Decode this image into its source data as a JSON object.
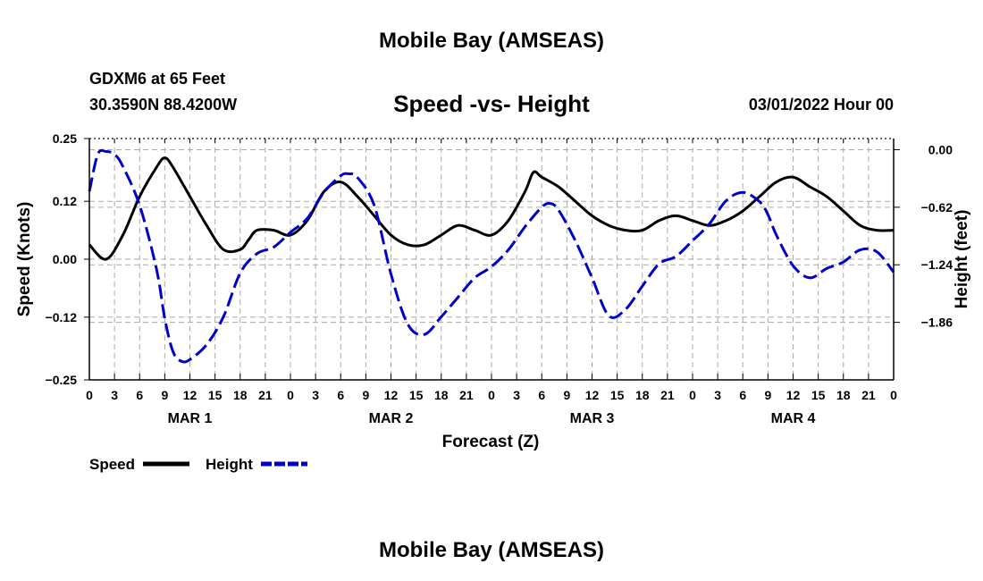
{
  "page": {
    "title_top": "Mobile Bay (AMSEAS)",
    "title_bottom": "Mobile Bay (AMSEAS)",
    "station_line": "GDXM6 at 65 Feet",
    "coords_line": "30.3590N  88.4200W",
    "chart_title": "Speed -vs- Height",
    "forecast_time": "03/01/2022 Hour 00"
  },
  "colors": {
    "speed": "#000000",
    "height": "#0000cc",
    "grid": "#aaaaaa"
  },
  "chart_data": {
    "type": "line",
    "title": "Speed -vs- Height",
    "xlabel": "Forecast (Z)",
    "ylabel_left": "Speed (Knots)",
    "ylabel_right": "Height (feet)",
    "xlim": [
      0,
      96
    ],
    "ylim_left": [
      -0.25,
      0.25
    ],
    "ylim_right": [
      -2.48,
      0.12
    ],
    "left_ticks": [
      0.25,
      0.12,
      0.0,
      -0.12,
      -0.25
    ],
    "left_tick_labels": [
      "0.25",
      "0.12",
      "0.00",
      "−0.12",
      "−0.25"
    ],
    "right_ticks": [
      0.0,
      -0.62,
      -1.24,
      -1.86
    ],
    "right_tick_labels": [
      "0.00",
      "−0.62",
      "−1.24",
      "−1.86"
    ],
    "x_ticks": [
      0,
      3,
      6,
      9,
      12,
      15,
      18,
      21,
      24,
      27,
      30,
      33,
      36,
      39,
      42,
      45,
      48,
      51,
      54,
      57,
      60,
      63,
      66,
      69,
      72,
      75,
      78,
      81,
      84,
      87,
      90,
      93,
      96
    ],
    "x_tick_labels": [
      "0",
      "3",
      "6",
      "9",
      "12",
      "15",
      "18",
      "21",
      "0",
      "3",
      "6",
      "9",
      "12",
      "15",
      "18",
      "21",
      "0",
      "3",
      "6",
      "9",
      "12",
      "15",
      "18",
      "21",
      "0",
      "3",
      "6",
      "9",
      "12",
      "15",
      "18",
      "21",
      "0"
    ],
    "day_labels": [
      {
        "x": 12,
        "label": "MAR 1"
      },
      {
        "x": 36,
        "label": "MAR 2"
      },
      {
        "x": 60,
        "label": "MAR 3"
      },
      {
        "x": 84,
        "label": "MAR 4"
      }
    ],
    "grid": true,
    "legend_placement": "bottom-left",
    "series": [
      {
        "name": "Speed",
        "axis": "left",
        "style": "solid",
        "x": [
          0,
          2,
          4,
          6,
          8,
          9,
          10,
          12,
          14,
          16,
          18,
          19,
          20,
          22,
          24,
          26,
          28,
          30,
          32,
          34,
          36,
          38,
          40,
          42,
          44,
          46,
          48,
          50,
          52,
          53,
          54,
          56,
          58,
          60,
          62,
          64,
          66,
          68,
          70,
          72,
          74,
          76,
          78,
          80,
          82,
          84,
          86,
          88,
          90,
          92,
          94,
          96
        ],
        "y": [
          0.03,
          0.0,
          0.05,
          0.13,
          0.19,
          0.21,
          0.19,
          0.13,
          0.07,
          0.02,
          0.02,
          0.04,
          0.06,
          0.06,
          0.05,
          0.08,
          0.14,
          0.16,
          0.13,
          0.09,
          0.05,
          0.03,
          0.03,
          0.05,
          0.07,
          0.06,
          0.05,
          0.08,
          0.14,
          0.18,
          0.17,
          0.15,
          0.12,
          0.09,
          0.07,
          0.06,
          0.06,
          0.08,
          0.09,
          0.08,
          0.07,
          0.08,
          0.1,
          0.13,
          0.16,
          0.17,
          0.15,
          0.13,
          0.1,
          0.07,
          0.06,
          0.06
        ]
      },
      {
        "name": "Height",
        "axis": "right",
        "style": "dashed",
        "x": [
          0,
          1,
          2,
          3,
          4,
          6,
          8,
          9,
          10,
          11,
          12,
          14,
          16,
          18,
          20,
          22,
          24,
          26,
          28,
          30,
          31,
          32,
          34,
          36,
          38,
          40,
          42,
          44,
          46,
          48,
          50,
          52,
          54,
          55,
          56,
          58,
          60,
          62,
          64,
          66,
          68,
          70,
          72,
          74,
          76,
          78,
          80,
          81,
          82,
          84,
          86,
          88,
          90,
          92,
          94,
          96
        ],
        "y": [
          -0.45,
          -0.05,
          -0.02,
          -0.05,
          -0.18,
          -0.6,
          -1.28,
          -1.82,
          -2.18,
          -2.28,
          -2.26,
          -2.1,
          -1.8,
          -1.33,
          -1.12,
          -1.05,
          -0.89,
          -0.74,
          -0.46,
          -0.28,
          -0.26,
          -0.3,
          -0.6,
          -1.34,
          -1.88,
          -1.99,
          -1.8,
          -1.59,
          -1.38,
          -1.26,
          -1.08,
          -0.83,
          -0.62,
          -0.58,
          -0.65,
          -0.98,
          -1.38,
          -1.79,
          -1.72,
          -1.47,
          -1.23,
          -1.15,
          -0.98,
          -0.8,
          -0.55,
          -0.46,
          -0.56,
          -0.7,
          -0.92,
          -1.25,
          -1.38,
          -1.28,
          -1.21,
          -1.08,
          -1.1,
          -1.32
        ]
      }
    ]
  },
  "legend": {
    "items": [
      {
        "label": "Speed",
        "color": "#000000",
        "style": "solid"
      },
      {
        "label": "Height",
        "color": "#0000cc",
        "style": "dashed"
      }
    ]
  }
}
